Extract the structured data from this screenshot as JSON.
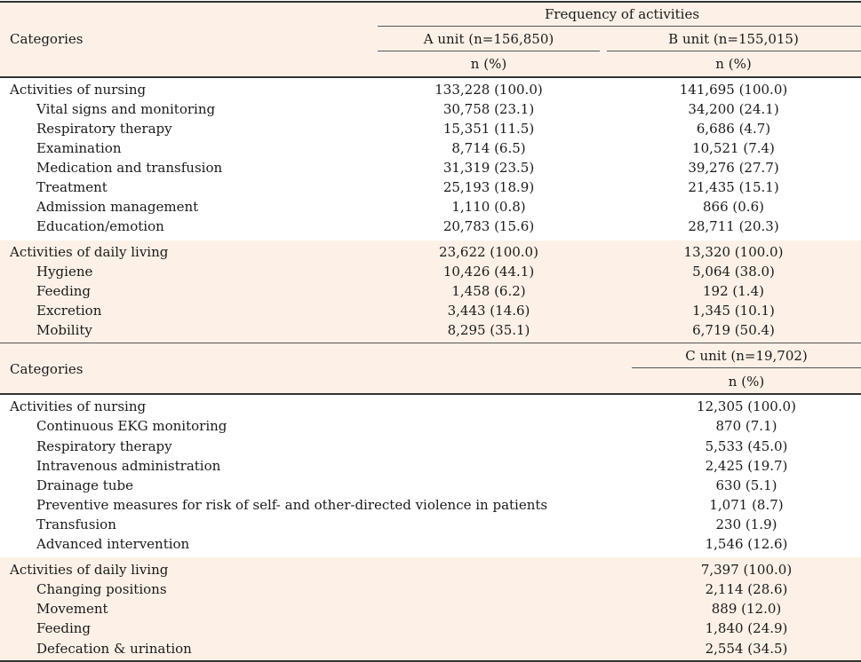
{
  "table1": {
    "header": {
      "categories": "Categories",
      "group": "Frequency of activities",
      "unit_a": "A unit (n=156,850)",
      "unit_b": "B unit (n=155,015)",
      "n_pct_a": "n (%)",
      "n_pct_b": "n (%)"
    },
    "rows": [
      {
        "label": "Activities of nursing",
        "a": "133,228 (100.0)",
        "b": "141,695 (100.0)"
      },
      {
        "label": "Vital signs and monitoring",
        "a": "30,758 (23.1)",
        "b": "34,200 (24.1)"
      },
      {
        "label": "Respiratory therapy",
        "a": "15,351 (11.5)",
        "b": "6,686 (4.7)"
      },
      {
        "label": "Examination",
        "a": "8,714 (6.5)",
        "b": "10,521 (7.4)"
      },
      {
        "label": "Medication and transfusion",
        "a": "31,319 (23.5)",
        "b": "39,276 (27.7)"
      },
      {
        "label": "Treatment",
        "a": "25,193 (18.9)",
        "b": "21,435 (15.1)"
      },
      {
        "label": "Admission management",
        "a": "1,110 (0.8)",
        "b": "866 (0.6)"
      },
      {
        "label": "Education/emotion",
        "a": "20,783 (15.6)",
        "b": "28,711 (20.3)"
      },
      {
        "label": "Activities of daily living",
        "a": "23,622 (100.0)",
        "b": "13,320 (100.0)"
      },
      {
        "label": "Hygiene",
        "a": "10,426 (44.1)",
        "b": "5,064 (38.0)"
      },
      {
        "label": "Feeding",
        "a": "1,458 (6.2)",
        "b": "192 (1.4)"
      },
      {
        "label": "Excretion",
        "a": "3,443 (14.6)",
        "b": "1,345 (10.1)"
      },
      {
        "label": "Mobility",
        "a": "8,295 (35.1)",
        "b": "6,719 (50.4)"
      }
    ]
  },
  "table2": {
    "header": {
      "categories": "Categories",
      "unit_c": "C unit (n=19,702)",
      "n_pct_c": "n (%)"
    },
    "rows": [
      {
        "label": "Activities of nursing",
        "c": "12,305 (100.0)"
      },
      {
        "label": "Continuous EKG monitoring",
        "c": "870 (7.1)"
      },
      {
        "label": "Respiratory therapy",
        "c": "5,533 (45.0)"
      },
      {
        "label": "Intravenous administration",
        "c": "2,425 (19.7)"
      },
      {
        "label": "Drainage tube",
        "c": "630 (5.1)"
      },
      {
        "label": "Preventive measures for risk of self- and other-directed violence in patients",
        "c": "1,071 (8.7)"
      },
      {
        "label": "Transfusion",
        "c": "230 (1.9)"
      },
      {
        "label": "Advanced intervention",
        "c": "1,546 (12.6)"
      },
      {
        "label": "Activities of daily living",
        "c": "7,397 (100.0)"
      },
      {
        "label": "Changing positions",
        "c": "2,114 (28.6)"
      },
      {
        "label": "Movement",
        "c": "889 (12.0)"
      },
      {
        "label": "Feeding",
        "c": "1,840 (24.9)"
      },
      {
        "label": "Defecation & urination",
        "c": "2,554 (34.5)"
      }
    ]
  }
}
